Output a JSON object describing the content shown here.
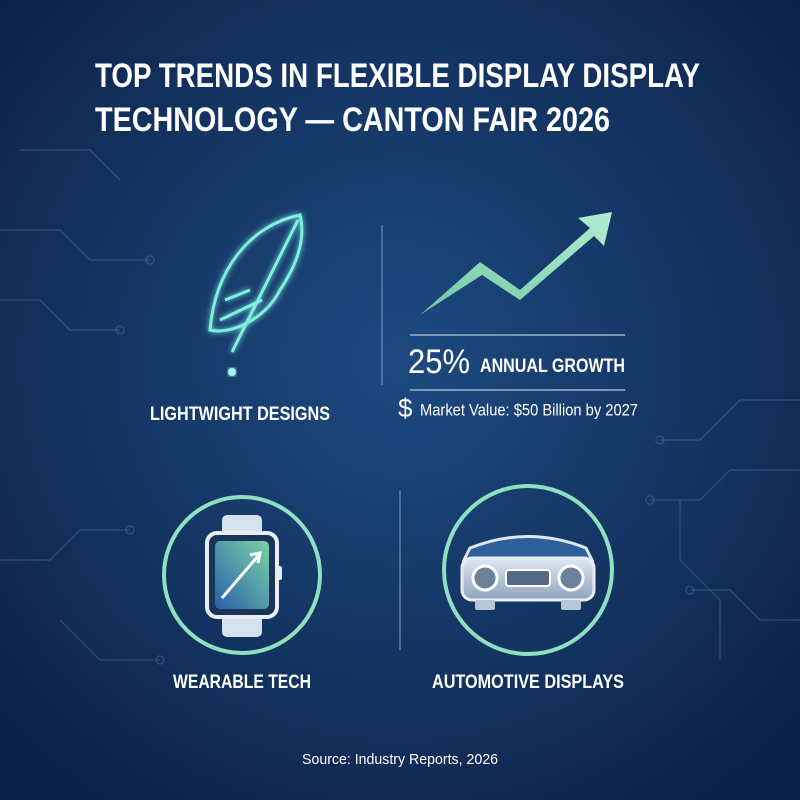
{
  "header": {
    "title_lines": [
      "TOP TRENDS IN FLEXIBLE DISPLAY DISPLAY",
      "TECHNOLOGY — CANTON FAIR 2026"
    ]
  },
  "panels": [
    {
      "label": "LIGHTWIGHT DESIGNS"
    },
    {
      "stat": "25%",
      "stat_label": "ANNUAL GROWTH",
      "currency_symbol": "$",
      "detail": "Market Value: $50 Billion by 2027"
    },
    {
      "label": "WEARABLE TECH"
    },
    {
      "label": "AUTOMOTIVE DISPLAYS"
    }
  ],
  "footer": {
    "source": "Source: Industry Reports, 2026"
  }
}
